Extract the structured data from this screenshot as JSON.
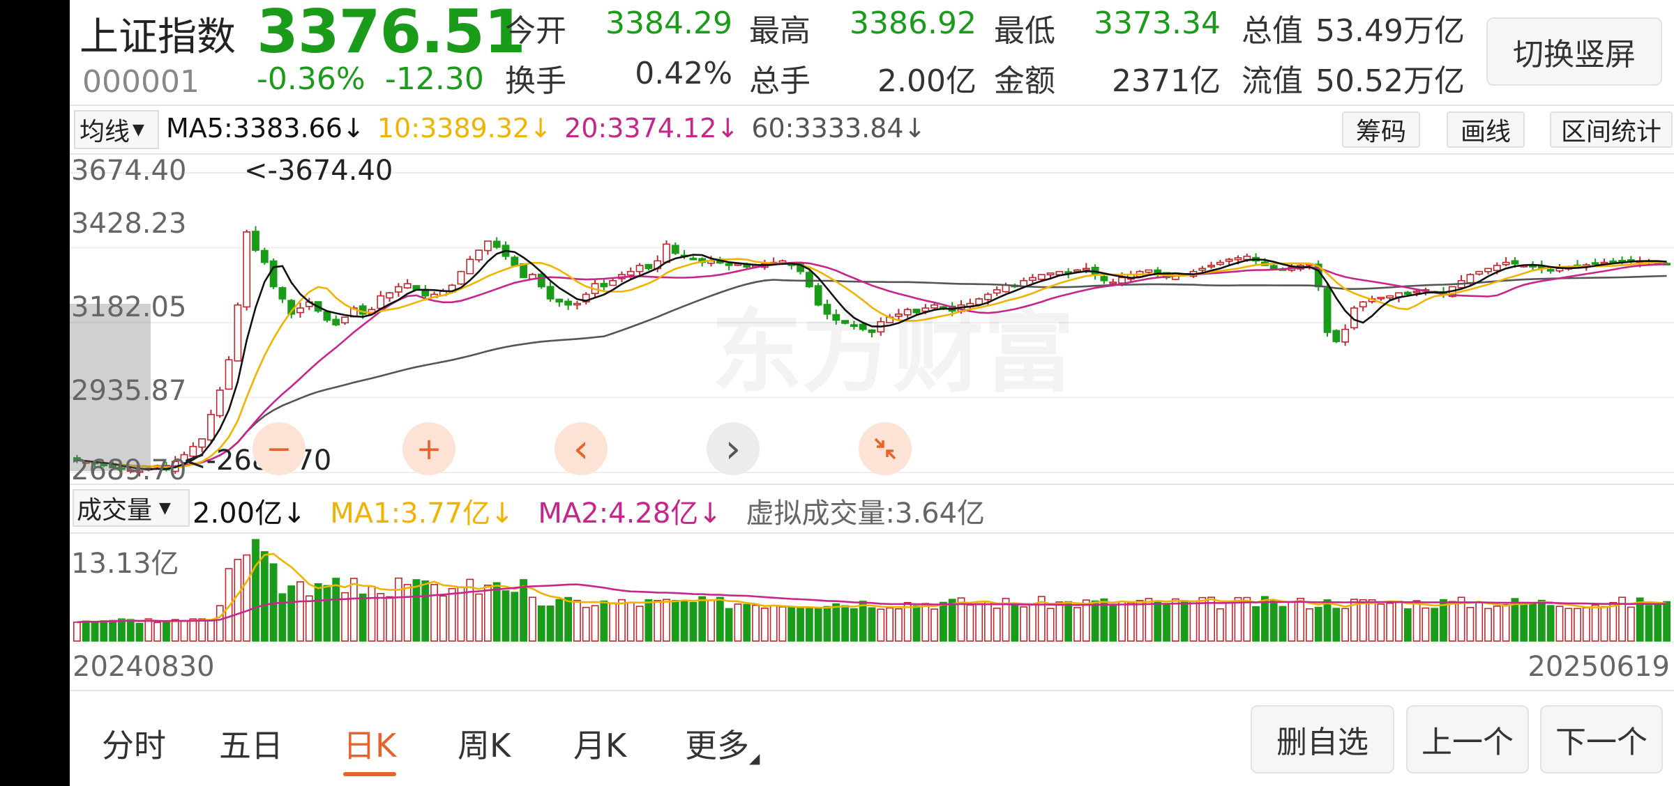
{
  "header": {
    "name": "上证指数",
    "code": "000001",
    "price": "3376.51",
    "change_pct": "-0.36%",
    "change_abs": "-12.30",
    "switch_button": "切换竖屏",
    "quotes": [
      {
        "label": "今开",
        "value": "3384.29",
        "color": "green"
      },
      {
        "label": "最高",
        "value": "3386.92",
        "color": "green"
      },
      {
        "label": "最低",
        "value": "3373.34",
        "color": "green"
      },
      {
        "label": "总值",
        "value": "53.49万亿",
        "color": "black"
      },
      {
        "label": "换手",
        "value": "0.42%",
        "color": "black"
      },
      {
        "label": "总手",
        "value": "2.00亿",
        "color": "black"
      },
      {
        "label": "金额",
        "value": "2371亿",
        "color": "black"
      },
      {
        "label": "流值",
        "value": "50.52万亿",
        "color": "black"
      }
    ]
  },
  "ma_bar": {
    "dropdown": "均线",
    "ma5": "MA5:3383.66",
    "ma10": "10:3389.32",
    "ma20": "20:3374.12",
    "ma60": "60:3333.84",
    "arrow": "↓",
    "tools": [
      "筹码",
      "画线",
      "区间统计"
    ]
  },
  "price_chart": {
    "y_labels": [
      "3674.40",
      "3428.23",
      "3182.05",
      "2935.87",
      "2689.70"
    ],
    "max_marker": "<-3674.40",
    "min_marker": "<-2689.70",
    "watermark": "东方财富"
  },
  "controls": {
    "zoom_out": "−",
    "zoom_in": "+",
    "prev": "‹",
    "next": "›",
    "collapse": "collapse-icon"
  },
  "volume_bar": {
    "dropdown": "成交量",
    "vol": "2.00亿",
    "ma1": "MA1:3.77亿",
    "ma2": "MA2:4.28亿",
    "virtual": "虚拟成交量:3.64亿",
    "arrow": "↓",
    "y_max": "13.13亿"
  },
  "dates": {
    "start": "20240830",
    "end": "20250619"
  },
  "tabs": [
    "分时",
    "五日",
    "日K",
    "周K",
    "月K",
    "更多"
  ],
  "active_tab": "日K",
  "bottom_buttons": [
    "删自选",
    "上一个",
    "下一个"
  ],
  "colors": {
    "up": "#c0262d",
    "down": "#1a9c1a",
    "ma5": "#111111",
    "ma10": "#f0b400",
    "ma20": "#c8258b",
    "ma60": "#555555",
    "accent": "#e8622b"
  },
  "chart_data": {
    "type": "candlestick",
    "x_range": [
      "20240830",
      "20250619"
    ],
    "ylim": [
      2689.7,
      3674.4
    ],
    "y_ticks": [
      3674.4,
      3428.23,
      3182.05,
      2935.87,
      2689.7
    ],
    "annotations": [
      {
        "label": "<-3674.40",
        "value": 3674.4
      },
      {
        "label": "<-2689.70",
        "value": 2689.7
      }
    ],
    "close_series": [
      2730,
      2725,
      2718,
      2712,
      2705,
      2700,
      2698,
      2695,
      2703,
      2712,
      2698,
      2726,
      2748,
      2775,
      2800,
      2880,
      2960,
      3060,
      3240,
      3480,
      3420,
      3380,
      3300,
      3260,
      3210,
      3230,
      3250,
      3220,
      3190,
      3175,
      3200,
      3230,
      3210,
      3225,
      3270,
      3280,
      3300,
      3310,
      3290,
      3270,
      3275,
      3285,
      3305,
      3350,
      3390,
      3420,
      3450,
      3430,
      3400,
      3370,
      3330,
      3340,
      3300,
      3260,
      3250,
      3240,
      3245,
      3275,
      3310,
      3300,
      3320,
      3340,
      3350,
      3370,
      3360,
      3385,
      3440,
      3410,
      3400,
      3390,
      3380,
      3385,
      3378,
      3370,
      3375,
      3365,
      3370,
      3375,
      3380,
      3385,
      3370,
      3350,
      3300,
      3240,
      3210,
      3190,
      3180,
      3170,
      3160,
      3150,
      3185,
      3200,
      3210,
      3225,
      3215,
      3230,
      3240,
      3230,
      3220,
      3240,
      3245,
      3260,
      3275,
      3290,
      3305,
      3300,
      3320,
      3330,
      3340,
      3345,
      3350,
      3345,
      3355,
      3360,
      3340,
      3320,
      3315,
      3330,
      3340,
      3350,
      3355,
      3340,
      3330,
      3345,
      3340,
      3350,
      3360,
      3370,
      3380,
      3390,
      3395,
      3400,
      3385,
      3370,
      3360,
      3355,
      3365,
      3370,
      3375,
      3300,
      3150,
      3120,
      3160,
      3230,
      3250,
      3260,
      3265,
      3270,
      3280,
      3275,
      3285,
      3290,
      3280,
      3275,
      3300,
      3320,
      3340,
      3350,
      3360,
      3370,
      3380,
      3375,
      3370,
      3365,
      3360,
      3355,
      3360,
      3365,
      3370,
      3372,
      3378,
      3380,
      3382,
      3385,
      3388,
      3385,
      3383,
      3380,
      3376
    ],
    "ma_values": {
      "MA5": 3383.66,
      "MA10": 3389.32,
      "MA20": 3374.12,
      "MA60": 3333.84
    },
    "volume": {
      "ylim_max": 13.13,
      "unit": "亿",
      "latest": 2.0,
      "MA1": 3.77,
      "MA2": 4.28,
      "virtual": 3.64
    }
  }
}
